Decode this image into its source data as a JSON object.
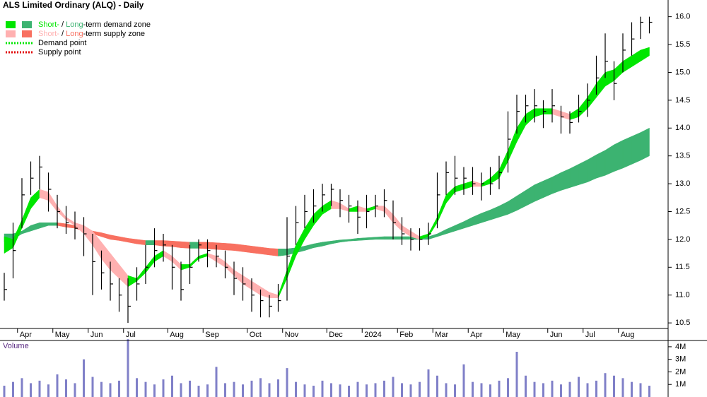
{
  "chart_data": {
    "type": "ohlc-zones",
    "title": "ALS Limited Ordinary (ALQ) - Daily",
    "legend": [
      {
        "short": "Short-",
        "sep": " / ",
        "long": "Long",
        "rest": "-term demand zone",
        "short_color": "#00e600",
        "long_color": "#3cb371"
      },
      {
        "short": "Short-",
        "sep": " / ",
        "long": "Long",
        "rest": "-term supply zone",
        "short_color": "#ffb0b0",
        "long_color": "#f87060"
      },
      {
        "label": "Demand point",
        "color": "#00e600"
      },
      {
        "label": "Supply point",
        "color": "#e00000"
      }
    ],
    "categories": [
      null,
      null,
      "Apr",
      null,
      null,
      null,
      "May",
      null,
      null,
      null,
      "Jun",
      null,
      null,
      null,
      "Jul",
      null,
      null,
      null,
      null,
      "Aug",
      null,
      null,
      null,
      "Sep",
      null,
      null,
      null,
      null,
      "Oct",
      null,
      null,
      null,
      "Nov",
      null,
      null,
      null,
      null,
      "Dec",
      null,
      null,
      null,
      "2024",
      null,
      null,
      null,
      "Feb",
      null,
      null,
      null,
      "Mar",
      null,
      null,
      null,
      "Apr",
      null,
      null,
      null,
      "May",
      null,
      null,
      null,
      null,
      "Jun",
      null,
      null,
      null,
      "Jul",
      null,
      null,
      null,
      "Aug",
      null,
      null,
      null
    ],
    "high": [
      11.4,
      12.3,
      13.1,
      13.4,
      13.5,
      13.2,
      12.8,
      12.6,
      12.5,
      12.4,
      12.1,
      11.8,
      11.6,
      11.3,
      11.3,
      11.5,
      11.9,
      12.2,
      12.1,
      11.9,
      11.6,
      11.9,
      12.0,
      12.0,
      11.9,
      11.8,
      11.6,
      11.5,
      11.3,
      11.1,
      11.0,
      11.2,
      12.4,
      12.6,
      12.8,
      12.9,
      13.0,
      13.0,
      12.9,
      12.8,
      12.7,
      12.8,
      12.8,
      12.9,
      12.7,
      12.4,
      12.2,
      12.2,
      12.3,
      13.2,
      13.4,
      13.5,
      13.3,
      13.3,
      13.2,
      13.3,
      13.5,
      14.3,
      14.6,
      14.6,
      14.7,
      14.5,
      14.7,
      14.4,
      14.3,
      14.6,
      14.8,
      15.3,
      15.7,
      15.2,
      15.7,
      15.9,
      16.0,
      16.0
    ],
    "low": [
      10.9,
      11.3,
      12.2,
      12.8,
      12.9,
      12.5,
      12.2,
      12.1,
      12.0,
      11.7,
      11.0,
      11.1,
      10.9,
      10.7,
      10.5,
      10.9,
      11.2,
      11.5,
      11.6,
      11.1,
      10.9,
      11.2,
      11.6,
      11.5,
      11.5,
      11.3,
      11.0,
      10.9,
      10.7,
      10.6,
      10.6,
      10.7,
      10.9,
      11.9,
      12.2,
      12.3,
      12.5,
      12.6,
      12.4,
      12.3,
      12.1,
      12.2,
      12.4,
      12.4,
      12.0,
      11.9,
      11.8,
      11.8,
      11.9,
      12.2,
      12.8,
      12.8,
      12.8,
      12.8,
      12.7,
      12.8,
      12.9,
      13.2,
      13.9,
      14.1,
      14.1,
      14.0,
      14.1,
      13.9,
      13.9,
      14.1,
      14.2,
      14.6,
      14.9,
      14.5,
      15.0,
      15.3,
      15.6,
      15.7
    ],
    "close": [
      11.1,
      11.8,
      12.8,
      13.1,
      13.3,
      12.9,
      12.5,
      12.3,
      12.2,
      12.1,
      11.6,
      11.4,
      11.2,
      11.0,
      10.8,
      11.2,
      11.5,
      11.8,
      11.9,
      11.5,
      11.1,
      11.5,
      11.9,
      11.8,
      11.7,
      11.5,
      11.3,
      11.2,
      11.0,
      10.9,
      10.8,
      10.9,
      11.7,
      12.3,
      12.5,
      12.6,
      12.8,
      12.9,
      12.7,
      12.6,
      12.4,
      12.5,
      12.6,
      12.7,
      12.3,
      12.1,
      12.0,
      12.0,
      12.1,
      12.8,
      13.2,
      13.1,
      13.1,
      13.0,
      13.0,
      13.0,
      13.2,
      13.8,
      14.3,
      14.4,
      14.4,
      14.3,
      14.4,
      14.2,
      14.1,
      14.3,
      14.5,
      14.9,
      15.2,
      14.8,
      15.4,
      15.6,
      15.9,
      15.9
    ],
    "short_zone": {
      "lower": [
        11.75,
        11.85,
        12.2,
        12.55,
        12.75,
        12.7,
        12.5,
        12.35,
        12.25,
        12.1,
        11.9,
        11.65,
        11.45,
        11.3,
        11.15,
        11.25,
        11.4,
        11.6,
        11.7,
        11.6,
        11.45,
        11.5,
        11.65,
        11.7,
        11.6,
        11.5,
        11.35,
        11.2,
        11.1,
        11.0,
        10.95,
        10.95,
        11.3,
        11.7,
        12.0,
        12.25,
        12.45,
        12.55,
        12.55,
        12.5,
        12.5,
        12.5,
        12.55,
        12.5,
        12.3,
        12.15,
        12.05,
        12.0,
        12.05,
        12.3,
        12.65,
        12.85,
        12.9,
        12.95,
        12.95,
        13.0,
        13.1,
        13.4,
        13.75,
        14.05,
        14.2,
        14.25,
        14.25,
        14.2,
        14.15,
        14.2,
        14.35,
        14.55,
        14.75,
        14.85,
        15.0,
        15.1,
        15.2,
        15.3
      ],
      "upper": [
        12.05,
        12.0,
        12.35,
        12.75,
        12.9,
        12.85,
        12.6,
        12.4,
        12.3,
        12.25,
        12.15,
        11.95,
        11.75,
        11.55,
        11.35,
        11.3,
        11.5,
        11.7,
        11.8,
        11.7,
        11.55,
        11.55,
        11.7,
        11.75,
        11.7,
        11.6,
        11.45,
        11.35,
        11.25,
        11.15,
        11.05,
        11.0,
        11.45,
        11.9,
        12.2,
        12.45,
        12.6,
        12.7,
        12.65,
        12.55,
        12.6,
        12.55,
        12.6,
        12.6,
        12.45,
        12.25,
        12.15,
        12.05,
        12.1,
        12.4,
        12.8,
        12.95,
        13.0,
        13.05,
        13.0,
        13.1,
        13.25,
        13.6,
        14.0,
        14.25,
        14.35,
        14.35,
        14.35,
        14.3,
        14.25,
        14.35,
        14.55,
        14.8,
        15.0,
        15.05,
        15.2,
        15.3,
        15.4,
        15.45
      ]
    },
    "long_zone": {
      "lower": [
        11.95,
        12.0,
        12.1,
        12.15,
        12.2,
        12.25,
        12.25,
        12.22,
        12.2,
        12.15,
        12.1,
        12.05,
        12.0,
        11.98,
        11.95,
        11.92,
        11.9,
        11.9,
        11.88,
        11.87,
        11.85,
        11.84,
        11.84,
        11.83,
        11.82,
        11.81,
        11.8,
        11.78,
        11.76,
        11.74,
        11.72,
        11.7,
        11.72,
        11.76,
        11.8,
        11.85,
        11.88,
        11.92,
        11.95,
        11.97,
        11.98,
        11.99,
        12.0,
        12.0,
        12.0,
        12.0,
        12.0,
        12.0,
        12.0,
        12.05,
        12.1,
        12.15,
        12.2,
        12.25,
        12.3,
        12.35,
        12.4,
        12.45,
        12.52,
        12.6,
        12.68,
        12.75,
        12.82,
        12.88,
        12.93,
        12.98,
        13.03,
        13.1,
        13.15,
        13.22,
        13.28,
        13.35,
        13.42,
        13.5
      ],
      "upper": [
        12.1,
        12.1,
        12.15,
        12.25,
        12.3,
        12.3,
        12.3,
        12.28,
        12.25,
        12.2,
        12.15,
        12.12,
        12.08,
        12.05,
        12.02,
        12.0,
        11.98,
        11.98,
        11.98,
        11.97,
        11.96,
        11.95,
        11.95,
        11.95,
        11.94,
        11.93,
        11.92,
        11.9,
        11.88,
        11.86,
        11.84,
        11.83,
        11.83,
        11.85,
        11.88,
        11.92,
        11.95,
        11.97,
        11.99,
        12.0,
        12.02,
        12.03,
        12.04,
        12.05,
        12.05,
        12.05,
        12.05,
        12.05,
        12.05,
        12.1,
        12.18,
        12.25,
        12.32,
        12.4,
        12.47,
        12.53,
        12.6,
        12.68,
        12.78,
        12.88,
        12.98,
        13.05,
        13.12,
        13.2,
        13.27,
        13.35,
        13.43,
        13.52,
        13.6,
        13.7,
        13.78,
        13.85,
        13.92,
        14.0
      ]
    },
    "ylim": [
      10.4,
      16.3
    ],
    "yticks": [
      10.5,
      {
        "value": 11,
        "label": "11.0"
      },
      11.5,
      {
        "value": 12,
        "label": "12.0"
      },
      12.5,
      {
        "value": 13,
        "label": "13.0"
      },
      13.5,
      {
        "value": 14,
        "label": "14.0"
      },
      14.5,
      {
        "value": 15,
        "label": "15.0"
      },
      15.5,
      {
        "value": 16,
        "label": "16.0"
      }
    ],
    "volume": {
      "label": "Volume",
      "color": "#8080c8",
      "values": [
        900000,
        1200000,
        1500000,
        1100000,
        1300000,
        1000000,
        1800000,
        1400000,
        1100000,
        3000000,
        1600000,
        1200000,
        1100000,
        1300000,
        4600000,
        1500000,
        1200000,
        1000000,
        1400000,
        1700000,
        1100000,
        1300000,
        900000,
        1000000,
        2400000,
        1100000,
        1200000,
        1000000,
        1300000,
        1500000,
        1100000,
        1400000,
        2300000,
        1200000,
        1000000,
        900000,
        1300000,
        1100000,
        1000000,
        900000,
        1200000,
        1000000,
        1100000,
        1300000,
        1600000,
        1100000,
        1000000,
        1200000,
        2200000,
        1700000,
        1100000,
        1000000,
        2600000,
        1200000,
        1100000,
        1000000,
        1300000,
        1500000,
        3600000,
        1700000,
        1200000,
        1100000,
        1300000,
        1000000,
        1200000,
        1600000,
        1100000,
        1300000,
        1900000,
        1700000,
        1500000,
        1200000,
        1100000,
        900000
      ],
      "ylim": [
        0,
        4500000
      ],
      "yticks": [
        {
          "value": 1000000,
          "label": "1M"
        },
        {
          "value": 2000000,
          "label": "2M"
        },
        {
          "value": 3000000,
          "label": "3M"
        },
        {
          "value": 4000000,
          "label": "4M"
        }
      ]
    }
  }
}
